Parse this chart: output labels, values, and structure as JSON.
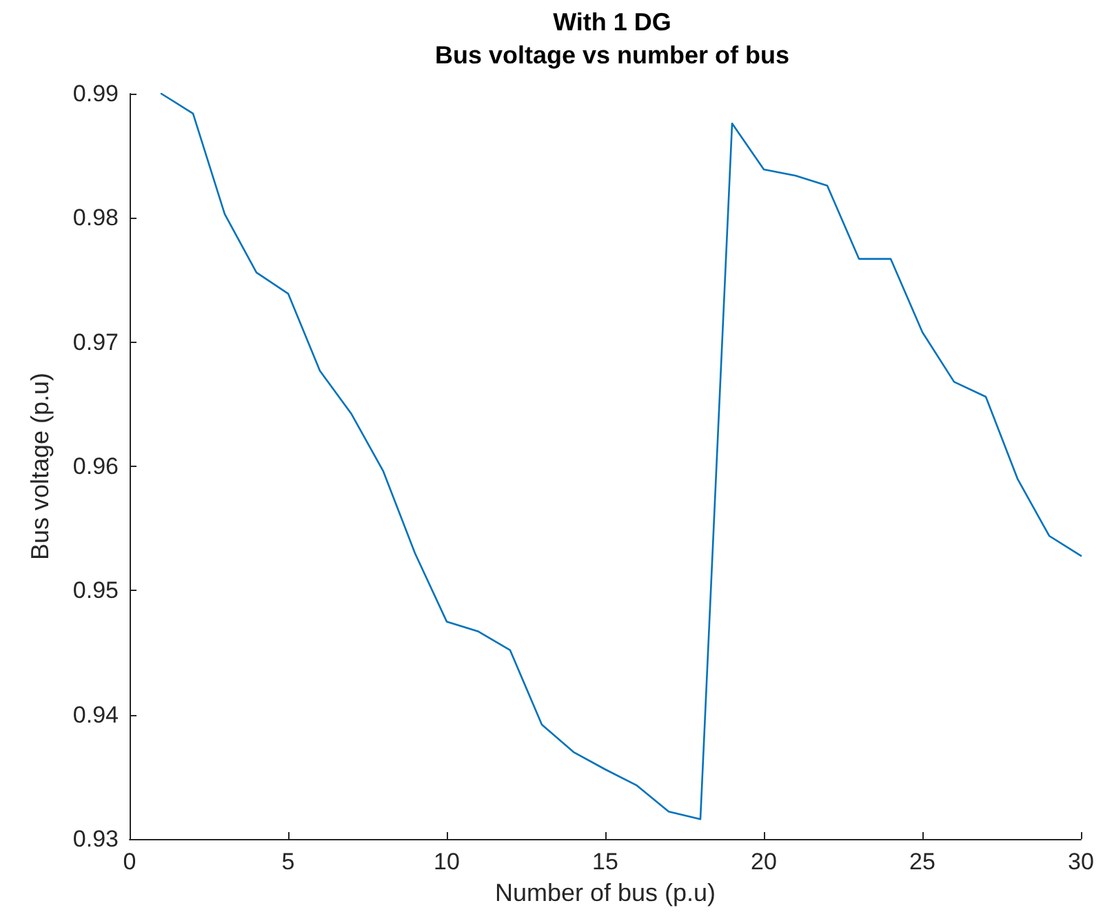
{
  "chart_data": {
    "type": "line",
    "title": "With 1 DG",
    "subtitle": "Bus voltage vs number of bus",
    "xlabel": "Number of bus (p.u)",
    "ylabel": "Bus voltage (p.u)",
    "x": [
      1,
      2,
      3,
      4,
      5,
      6,
      7,
      8,
      9,
      10,
      11,
      12,
      13,
      14,
      15,
      16,
      17,
      18,
      19,
      20,
      21,
      22,
      23,
      24,
      25,
      26,
      27,
      28,
      29,
      30
    ],
    "series": [
      {
        "color": "#0072bd",
        "values": [
          0.99,
          0.9884,
          0.9803,
          0.9756,
          0.9739,
          0.9677,
          0.9642,
          0.9596,
          0.953,
          0.9475,
          0.9467,
          0.9452,
          0.9392,
          0.937,
          0.9356,
          0.9343,
          0.9322,
          0.9316,
          0.9876,
          0.9839,
          0.9834,
          0.9826,
          0.9767,
          0.9767,
          0.9708,
          0.9668,
          0.9656,
          0.959,
          0.9544,
          0.9528
        ]
      }
    ],
    "xlim": [
      0,
      30
    ],
    "xticks": [
      0,
      5,
      10,
      15,
      20,
      25,
      30
    ],
    "ylim": [
      0.93,
      0.99
    ],
    "yticks": [
      0.93,
      0.94,
      0.95,
      0.96,
      0.97,
      0.98,
      0.99
    ],
    "marker": "none",
    "line_style": "solid"
  }
}
